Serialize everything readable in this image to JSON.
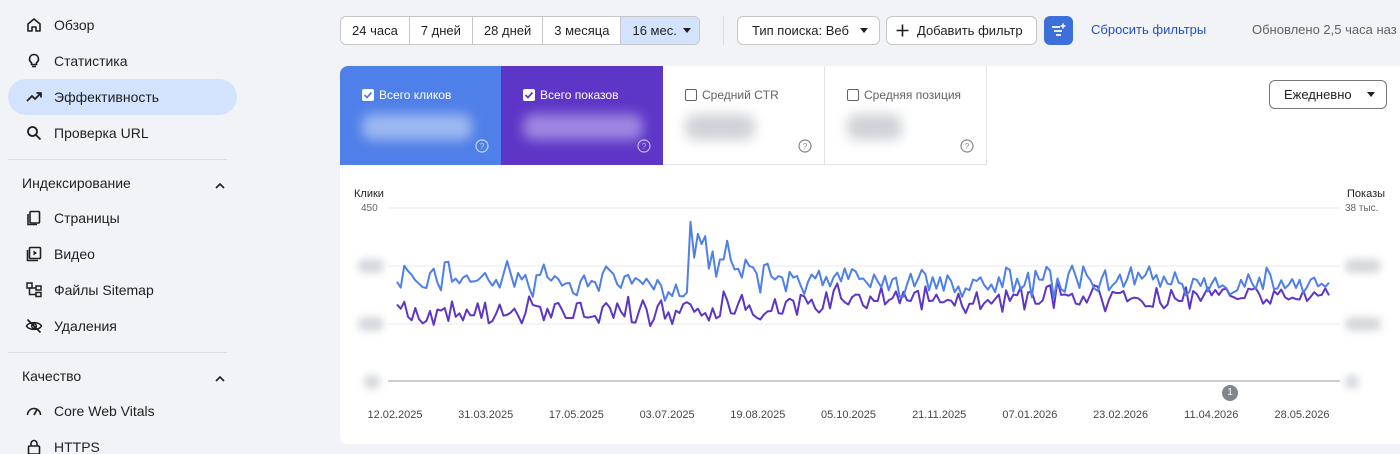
{
  "sidebar": {
    "items": [
      {
        "label": "Обзор",
        "icon": "home-icon"
      },
      {
        "label": "Статистика",
        "icon": "lightbulb-icon"
      },
      {
        "label": "Эффективность",
        "icon": "trending-up-icon",
        "active": true
      },
      {
        "label": "Проверка URL",
        "icon": "search-icon"
      }
    ],
    "indexing": {
      "title": "Индексирование",
      "items": [
        {
          "label": "Страницы",
          "icon": "pages-icon"
        },
        {
          "label": "Видео",
          "icon": "video-icon"
        },
        {
          "label": "Файлы Sitemap",
          "icon": "sitemap-icon"
        },
        {
          "label": "Удаления",
          "icon": "visibility-off-icon"
        }
      ]
    },
    "quality": {
      "title": "Качество",
      "items": [
        {
          "label": "Core Web Vitals",
          "icon": "speed-icon"
        },
        {
          "label": "HTTPS",
          "icon": "lock-icon"
        }
      ]
    }
  },
  "toolbar": {
    "ranges": [
      "24 часа",
      "7 дней",
      "28 дней",
      "3 месяца"
    ],
    "selected_range": "16 мес.",
    "search_type": "Тип поиска: Веб",
    "add_filter": "Добавить фильтр",
    "reset_filters": "Сбросить фильтры",
    "updated": "Обновлено 2,5 часа наз"
  },
  "metrics": {
    "clicks": {
      "label": "Всего кликов",
      "checked": true
    },
    "impressions": {
      "label": "Всего показов",
      "checked": true
    },
    "ctr": {
      "label": "Средний CTR",
      "checked": false
    },
    "position": {
      "label": "Средняя позиция",
      "checked": false
    }
  },
  "granularity": "Ежедневно",
  "colors": {
    "clicks": "#4f7fe8",
    "impressions": "#5e36c7",
    "accent": "#3c6fd8",
    "link": "#2150c4"
  },
  "chart_data": {
    "type": "line",
    "left_axis_label": "Клики",
    "right_axis_label": "Показы",
    "left_axis_top": "450",
    "right_axis_top": "38 тыс.",
    "x_labels": [
      "12.02.2025",
      "31.03.2025",
      "17.05.2025",
      "03.07.2025",
      "19.08.2025",
      "05.10.2025",
      "21.11.2025",
      "07.01.2026",
      "23.02.2026",
      "11.04.2026",
      "28.05.2026"
    ],
    "annotation": "1",
    "series": [
      {
        "name": "Всего кликов",
        "values": [
          258,
          243,
          300,
          286,
          276,
          262,
          253,
          244,
          242,
          281,
          292,
          256,
          236,
          309,
          310,
          258,
          266,
          254,
          269,
          275,
          258,
          259,
          262,
          271,
          281,
          262,
          248,
          263,
          243,
          277,
          312,
          279,
          245,
          281,
          264,
          276,
          243,
          219,
          275,
          276,
          303,
          270,
          261,
          273,
          265,
          248,
          254,
          255,
          229,
          223,
          259,
          275,
          246,
          260,
          257,
          234,
          279,
          298,
          288,
          278,
          252,
          242,
          272,
          276,
          253,
          268,
          262,
          252,
          266,
          252,
          238,
          263,
          248,
          209,
          231,
          221,
          251,
          221,
          220,
          230,
          414,
          321,
          383,
          356,
          377,
          292,
          337,
          271,
          316,
          316,
          365,
          314,
          290,
          292,
          269,
          316,
          299,
          296,
          280,
          230,
          301,
          305,
          272,
          264,
          273,
          269,
          233,
          284,
          269,
          273,
          249,
          226,
          258,
          277,
          267,
          287,
          249,
          271,
          246,
          270,
          282,
          259,
          293,
          265,
          291,
          285,
          265,
          267,
          256,
          244,
          277,
          259,
          244,
          273,
          236,
          264,
          269,
          219,
          219,
          251,
          279,
          246,
          265,
          289,
          278,
          236,
          270,
          240,
          270,
          235,
          275,
          260,
          231,
          246,
          219,
          241,
          236,
          264,
          260,
          270,
          250,
          238,
          251,
          231,
          270,
          244,
          295,
          289,
          232,
          266,
          239,
          249,
          282,
          218,
          287,
          264,
          263,
          297,
          287,
          215,
          267,
          239,
          232,
          279,
          300,
          272,
          242,
          298,
          275,
          262,
          241,
          234,
          266,
          288,
          236,
          249,
          258,
          277,
          245,
          265,
          296,
          251,
          282,
          266,
          276,
          298,
          264,
          276,
          245,
          272,
          253,
          251,
          283,
          256,
          252,
          223,
          233,
          266,
          263,
          247,
          268,
          233,
          253,
          269,
          243,
          249,
          242,
          225,
          231,
          236,
          263,
          245,
          278,
          255,
          239,
          269,
          239,
          295,
          277,
          239,
          241,
          262,
          241,
          250,
          265,
          242,
          263,
          230,
          244,
          264,
          269,
          246,
          253,
          245,
          256
        ]
      },
      {
        "name": "Всего показов",
        "values": [
          199,
          188,
          206,
          167,
          158,
          190,
          161,
          150,
          156,
          182,
          146,
          186,
          183,
          190,
          156,
          207,
          167,
          176,
          158,
          186,
          171,
          171,
          202,
          164,
          204,
          150,
          156,
          175,
          199,
          170,
          172,
          178,
          188,
          170,
          150,
          176,
          220,
          198,
          195,
          193,
          158,
          188,
          165,
          200,
          203,
          185,
          164,
          164,
          164,
          202,
          204,
          167,
          165,
          167,
          169,
          151,
          192,
          203,
          191,
          164,
          202,
          181,
          168,
          219,
          153,
          152,
          183,
          210,
          187,
          143,
          161,
          194,
          210,
          162,
          179,
          148,
          183,
          177,
          200,
          205,
          199,
          180,
          188,
          170,
          177,
          157,
          189,
          163,
          169,
          233,
          210,
          176,
          175,
          201,
          224,
          185,
          197,
          173,
          165,
          160,
          173,
          181,
          182,
          213,
          176,
          175,
          206,
          214,
          209,
          172,
          224,
          220,
          201,
          212,
          188,
          178,
          188,
          231,
          189,
          234,
          254,
          215,
          205,
          199,
          218,
          225,
          224,
          197,
          189,
          220,
          208,
          208,
          244,
          199,
          210,
          215,
          233,
          202,
          232,
          210,
          208,
          230,
          235,
          186,
          246,
          208,
          209,
          225,
          205,
          205,
          211,
          209,
          196,
          227,
          195,
          177,
          201,
          201,
          231,
          187,
          202,
          211,
          201,
          213,
          225,
          180,
          236,
          208,
          225,
          223,
          244,
          186,
          231,
          231,
          201,
          201,
          210,
          245,
          249,
          190,
          261,
          224,
          225,
          222,
          227,
          201,
          199,
          220,
          204,
          226,
          249,
          245,
          214,
          181,
          210,
          232,
          229,
          229,
          234,
          207,
          214,
          217,
          215,
          207,
          194,
          195,
          193,
          242,
          203,
          189,
          199,
          237,
          215,
          208,
          208,
          244,
          188,
          234,
          226,
          208,
          225,
          243,
          223,
          237,
          224,
          238,
          240,
          222,
          218,
          213,
          215,
          216,
          240,
          238,
          242,
          226,
          201,
          212,
          201,
          234,
          225,
          238,
          218,
          212,
          217,
          213,
          212,
          235,
          208,
          219,
          231,
          222,
          224,
          241,
          223
        ]
      }
    ]
  }
}
